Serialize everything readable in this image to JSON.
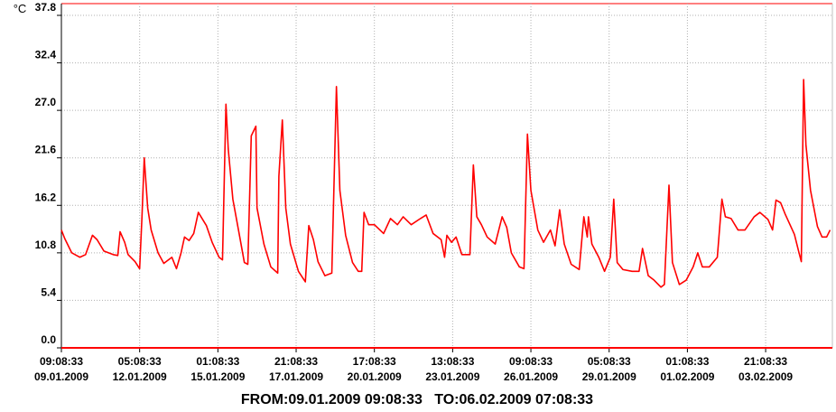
{
  "chart_data": {
    "type": "line",
    "title": "FROM:09.01.2009 09:08:33   TO:06.02.2009 07:08:33",
    "y_label": "°C",
    "xlim": [
      "09.01.2009 09:08:33",
      "06.02.2009 07:08:33"
    ],
    "xticks": [
      {
        "time": "09:08:33",
        "date": "09.01.2009"
      },
      {
        "time": "05:08:33",
        "date": "12.01.2009"
      },
      {
        "time": "01:08:33",
        "date": "15.01.2009"
      },
      {
        "time": "21:08:33",
        "date": "17.01.2009"
      },
      {
        "time": "17:08:33",
        "date": "20.01.2009"
      },
      {
        "time": "13:08:33",
        "date": "23.01.2009"
      },
      {
        "time": "09:08:33",
        "date": "26.01.2009"
      },
      {
        "time": "05:08:33",
        "date": "29.01.2009"
      },
      {
        "time": "01:08:33",
        "date": "01.02.2009"
      },
      {
        "time": "21:08:33",
        "date": "03.02.2009"
      }
    ],
    "ylim": [
      0,
      37.8
    ],
    "yticks": [
      {
        "value": 0,
        "label": "0.0"
      },
      5.4,
      10.8,
      16.2,
      21.6,
      {
        "value": 27,
        "label": "27.0"
      },
      32.4,
      37.8
    ],
    "grid": true,
    "series": [
      {
        "color": "#ff0000",
        "x": [
          "09.01.2009 09:08:33",
          "09.01.2009 12:08:33",
          "09.01.2009 18:08:33",
          "10.01.2009 01:08:33",
          "10.01.2009 06:08:33",
          "10.01.2009 12:08:33",
          "10.01.2009 16:08:33",
          "10.01.2009 22:08:33",
          "11.01.2009 06:08:33",
          "11.01.2009 10:08:33",
          "11.01.2009 12:08:33",
          "11.01.2009 16:08:33",
          "11.01.2009 19:08:33",
          "12.01.2009 01:08:33",
          "12.01.2009 05:08:33",
          "12.01.2009 07:08:33",
          "12.01.2009 09:08:33",
          "12.01.2009 12:08:33",
          "12.01.2009 15:08:33",
          "12.01.2009 21:08:33",
          "13.01.2009 02:08:33",
          "13.01.2009 09:08:33",
          "13.01.2009 13:08:33",
          "13.01.2009 17:08:33",
          "13.01.2009 20:08:33",
          "14.01.2009 00:08:33",
          "14.01.2009 04:08:33",
          "14.01.2009 08:08:33",
          "14.01.2009 15:08:33",
          "14.01.2009 20:08:33",
          "15.01.2009 02:08:33",
          "15.01.2009 05:08:33",
          "15.01.2009 08:08:33",
          "15.01.2009 10:08:33",
          "15.01.2009 14:08:33",
          "15.01.2009 20:08:33",
          "16.01.2009 00:08:33",
          "16.01.2009 03:08:33",
          "16.01.2009 06:08:33",
          "16.01.2009 10:08:33",
          "16.01.2009 11:08:33",
          "16.01.2009 17:08:33",
          "16.01.2009 23:08:33",
          "17.01.2009 05:08:33",
          "17.01.2009 06:08:33",
          "17.01.2009 09:08:33",
          "17.01.2009 12:08:33",
          "17.01.2009 16:08:33",
          "17.01.2009 23:08:33",
          "18.01.2009 05:08:33",
          "18.01.2009 08:08:33",
          "18.01.2009 12:08:33",
          "18.01.2009 16:08:33",
          "18.01.2009 22:08:33",
          "19.01.2009 04:08:33",
          "19.01.2009 08:08:33",
          "19.01.2009 11:08:33",
          "19.01.2009 16:08:33",
          "19.01.2009 22:08:33",
          "20.01.2009 03:08:33",
          "20.01.2009 06:08:33",
          "20.01.2009 08:08:33",
          "20.01.2009 12:08:33",
          "20.01.2009 17:08:33",
          "21.01.2009 01:08:33",
          "21.01.2009 07:08:33",
          "21.01.2009 13:08:33",
          "21.01.2009 18:08:33",
          "22.01.2009 01:08:33",
          "22.01.2009 09:08:33",
          "22.01.2009 14:08:33",
          "22.01.2009 20:08:33",
          "23.01.2009 03:08:33",
          "23.01.2009 06:08:33",
          "23.01.2009 08:08:33",
          "23.01.2009 12:08:33",
          "23.01.2009 16:08:33",
          "23.01.2009 21:08:33",
          "24.01.2009 04:08:33",
          "24.01.2009 07:08:33",
          "24.01.2009 10:08:33",
          "24.01.2009 14:08:33",
          "24.01.2009 19:08:33",
          "25.01.2009 02:08:33",
          "25.01.2009 08:08:33",
          "25.01.2009 12:08:33",
          "25.01.2009 16:08:33",
          "25.01.2009 23:08:33",
          "26.01.2009 03:08:33",
          "26.01.2009 06:08:33",
          "26.01.2009 09:08:33",
          "26.01.2009 15:08:33",
          "26.01.2009 20:08:33",
          "27.01.2009 02:08:33",
          "27.01.2009 06:08:33",
          "27.01.2009 10:08:33",
          "27.01.2009 14:08:33",
          "27.01.2009 20:08:33",
          "28.01.2009 03:08:33",
          "28.01.2009 07:08:33",
          "28.01.2009 10:08:33",
          "28.01.2009 11:08:33",
          "28.01.2009 14:08:33",
          "28.01.2009 20:08:33",
          "29.01.2009 01:08:33",
          "29.01.2009 06:08:33",
          "29.01.2009 09:08:33",
          "29.01.2009 12:08:33",
          "29.01.2009 17:08:33",
          "30.01.2009 01:08:33",
          "30.01.2009 07:08:33",
          "30.01.2009 10:08:33",
          "30.01.2009 15:08:33",
          "30.01.2009 20:08:33",
          "31.01.2009 02:08:33",
          "31.01.2009 05:08:33",
          "31.01.2009 09:08:33",
          "31.01.2009 12:08:33",
          "31.01.2009 18:08:33",
          "01.02.2009 00:08:33",
          "01.02.2009 06:08:33",
          "01.02.2009 10:08:33",
          "01.02.2009 14:08:33",
          "01.02.2009 20:08:33",
          "02.02.2009 03:08:33",
          "02.02.2009 07:08:33",
          "02.02.2009 10:08:33",
          "02.02.2009 15:08:33",
          "02.02.2009 21:08:33",
          "03.02.2009 03:08:33",
          "03.02.2009 11:08:33",
          "03.02.2009 16:08:33",
          "03.02.2009 23:08:33",
          "04.02.2009 03:08:33",
          "04.02.2009 06:08:33",
          "04.02.2009 10:08:33",
          "04.02.2009 14:08:33",
          "04.02.2009 22:08:33",
          "05.02.2009 02:08:33",
          "05.02.2009 04:08:33",
          "05.02.2009 06:08:33",
          "05.02.2009 08:08:33",
          "05.02.2009 12:08:33",
          "05.02.2009 18:08:33",
          "05.02.2009 22:08:33",
          "06.02.2009 02:08:33",
          "06.02.2009 05:08:33"
        ],
        "values": [
          13.4,
          12.4,
          10.8,
          10.3,
          10.6,
          12.8,
          12.3,
          11.0,
          10.6,
          10.5,
          13.2,
          12.0,
          10.6,
          9.8,
          9.0,
          14.8,
          21.6,
          15.9,
          13.4,
          10.8,
          9.6,
          10.3,
          9.0,
          10.8,
          12.6,
          12.2,
          13.0,
          15.4,
          13.9,
          12.0,
          10.3,
          10.0,
          27.7,
          22.6,
          16.9,
          12.6,
          9.7,
          9.5,
          24.1,
          25.2,
          15.9,
          11.8,
          9.2,
          8.5,
          19.5,
          25.9,
          15.9,
          11.8,
          8.7,
          7.5,
          13.9,
          12.3,
          9.8,
          8.2,
          8.5,
          29.7,
          17.9,
          12.8,
          9.7,
          8.7,
          8.7,
          15.4,
          14.0,
          14.0,
          13.0,
          14.7,
          14.0,
          14.9,
          14.0,
          14.7,
          15.1,
          13.0,
          12.3,
          10.3,
          12.8,
          12.0,
          12.6,
          10.6,
          10.6,
          20.8,
          14.9,
          14.0,
          12.6,
          11.8,
          14.9,
          13.7,
          10.8,
          9.2,
          9.0,
          24.3,
          17.9,
          13.4,
          12.0,
          13.4,
          11.6,
          15.7,
          11.8,
          9.5,
          8.9,
          14.9,
          12.6,
          14.9,
          11.8,
          10.3,
          8.7,
          10.3,
          16.9,
          9.7,
          8.9,
          8.7,
          8.7,
          11.3,
          8.2,
          7.7,
          6.9,
          7.2,
          18.5,
          9.7,
          7.2,
          7.7,
          9.2,
          10.8,
          9.2,
          9.2,
          10.3,
          16.9,
          14.9,
          14.7,
          13.4,
          13.4,
          14.9,
          15.4,
          14.6,
          13.4,
          16.8,
          16.5,
          15.2,
          12.9,
          10.8,
          9.8,
          30.5,
          23.1,
          17.9,
          13.8,
          12.6,
          12.6,
          13.4
        ]
      }
    ]
  }
}
